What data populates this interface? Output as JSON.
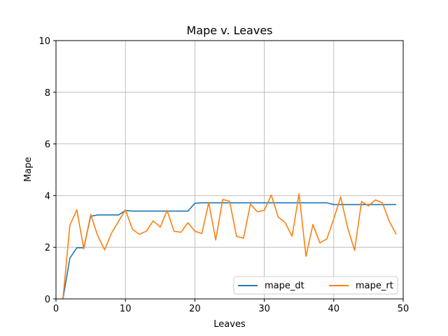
{
  "chart_data": {
    "type": "line",
    "title": "Mape v. Leaves",
    "xlabel": "Leaves",
    "ylabel": "Mape",
    "xlim": [
      0,
      50
    ],
    "ylim": [
      0,
      10
    ],
    "xticks": [
      0,
      10,
      20,
      30,
      40,
      50
    ],
    "yticks": [
      0,
      2,
      4,
      6,
      8,
      10
    ],
    "grid": true,
    "legend_position": "lower-right",
    "x": [
      1,
      2,
      3,
      4,
      5,
      6,
      7,
      8,
      9,
      10,
      11,
      12,
      13,
      14,
      15,
      16,
      17,
      18,
      19,
      20,
      21,
      22,
      23,
      24,
      25,
      26,
      27,
      28,
      29,
      30,
      31,
      32,
      33,
      34,
      35,
      36,
      37,
      38,
      39,
      40,
      41,
      42,
      43,
      44,
      45,
      46,
      47,
      48,
      49
    ],
    "series": [
      {
        "name": "mape_dt",
        "color": "#1f77b4",
        "values": [
          0.0,
          1.58,
          1.98,
          1.98,
          3.2,
          3.25,
          3.25,
          3.25,
          3.25,
          3.42,
          3.4,
          3.4,
          3.4,
          3.4,
          3.4,
          3.4,
          3.4,
          3.4,
          3.4,
          3.7,
          3.72,
          3.72,
          3.72,
          3.72,
          3.72,
          3.72,
          3.72,
          3.72,
          3.72,
          3.72,
          3.72,
          3.72,
          3.72,
          3.72,
          3.72,
          3.72,
          3.72,
          3.72,
          3.72,
          3.65,
          3.65,
          3.65,
          3.65,
          3.65,
          3.65,
          3.65,
          3.65,
          3.65,
          3.65
        ]
      },
      {
        "name": "mape_rt",
        "color": "#ff7f0e",
        "values": [
          0.0,
          2.85,
          3.45,
          1.93,
          3.27,
          2.45,
          1.9,
          2.55,
          3.0,
          3.45,
          2.7,
          2.5,
          2.62,
          3.02,
          2.78,
          3.42,
          2.62,
          2.58,
          2.95,
          2.62,
          2.53,
          3.73,
          2.28,
          3.85,
          3.78,
          2.42,
          2.35,
          3.67,
          3.37,
          3.43,
          4.02,
          3.17,
          2.95,
          2.43,
          4.07,
          1.65,
          2.88,
          2.17,
          2.32,
          3.1,
          3.95,
          2.75,
          1.88,
          3.77,
          3.6,
          3.83,
          3.72,
          3.0,
          2.5
        ]
      }
    ]
  }
}
